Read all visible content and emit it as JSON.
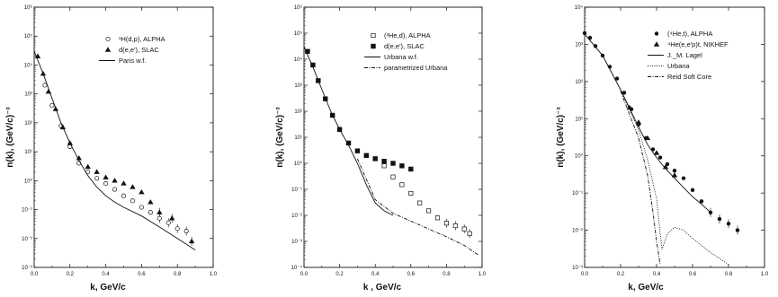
{
  "chart_data": [
    {
      "type": "scatter",
      "xlabel": "k,   GeV/c",
      "ylabel": "n(k),   (GeV/c)⁻³",
      "xlim": [
        0,
        1.0
      ],
      "ylim": [
        0.001,
        1000000.0
      ],
      "y_scale": "log",
      "x_ticks": [
        "0.0",
        "0.2",
        "0.4",
        "0.6",
        "0.8",
        "1.0"
      ],
      "y_ticks": [
        "10⁻³",
        "10⁻²",
        "10⁻¹",
        "10⁰",
        "10¹",
        "10²",
        "10³",
        "10⁴",
        "10⁵",
        "10⁶"
      ],
      "legend_position": "top-right",
      "series": [
        {
          "name": "¹H(d,p),  ALPHA",
          "marker": "open-circle",
          "x": [
            0.06,
            0.1,
            0.15,
            0.2,
            0.25,
            0.3,
            0.35,
            0.4,
            0.45,
            0.5,
            0.55,
            0.6,
            0.65,
            0.7,
            0.75,
            0.8,
            0.85
          ],
          "y": [
            2000,
            400,
            80,
            15,
            4,
            2,
            1.2,
            0.8,
            0.5,
            0.3,
            0.2,
            0.12,
            0.08,
            0.05,
            0.035,
            0.022,
            0.018
          ]
        },
        {
          "name": "d(e,e'),  SLAC",
          "marker": "filled-triangle",
          "x": [
            0.02,
            0.05,
            0.08,
            0.12,
            0.16,
            0.2,
            0.25,
            0.3,
            0.35,
            0.4,
            0.45,
            0.5,
            0.55,
            0.6,
            0.65,
            0.7,
            0.77,
            0.88
          ],
          "y": [
            20000,
            5000,
            1200,
            300,
            70,
            20,
            6,
            3,
            2,
            1.3,
            1,
            0.8,
            0.6,
            0.4,
            0.18,
            0.08,
            0.05,
            0.008
          ]
        },
        {
          "name": "Paris w.f.",
          "marker": "line-solid",
          "x": [
            0.0,
            0.05,
            0.1,
            0.15,
            0.2,
            0.25,
            0.3,
            0.35,
            0.4,
            0.45,
            0.5,
            0.6,
            0.7,
            0.8,
            0.9
          ],
          "y": [
            30000,
            5000,
            700,
            100,
            20,
            5,
            1.5,
            0.6,
            0.3,
            0.18,
            0.12,
            0.06,
            0.025,
            0.01,
            0.004
          ]
        }
      ]
    },
    {
      "type": "scatter",
      "xlabel": "k ,  GeV/c",
      "ylabel": "n(k),   (GeV/c)⁻³",
      "xlim": [
        0,
        1.0
      ],
      "ylim": [
        0.0001,
        1000000.0
      ],
      "y_scale": "log",
      "x_ticks": [
        "0.0",
        "0.2",
        "0.4",
        "0.6",
        "0.8",
        "1.0"
      ],
      "y_ticks": [
        "10⁻⁴",
        "10⁻³",
        "10⁻²",
        "10⁻¹",
        "10⁰",
        "10¹",
        "10²",
        "10³",
        "10⁴",
        "10⁵",
        "10⁶"
      ],
      "legend_position": "top-right",
      "series": [
        {
          "name": "(³He,d),  ALPHA",
          "marker": "open-square",
          "x": [
            0.45,
            0.5,
            0.55,
            0.6,
            0.65,
            0.7,
            0.75,
            0.8,
            0.85,
            0.9,
            0.93
          ],
          "y": [
            0.8,
            0.3,
            0.15,
            0.07,
            0.03,
            0.015,
            0.008,
            0.005,
            0.004,
            0.003,
            0.002
          ]
        },
        {
          "name": "d(e,e'),     SLAC",
          "marker": "filled-square",
          "x": [
            0.02,
            0.05,
            0.08,
            0.12,
            0.16,
            0.2,
            0.25,
            0.3,
            0.35,
            0.4,
            0.45,
            0.5,
            0.55,
            0.6
          ],
          "y": [
            20000,
            6000,
            1500,
            300,
            70,
            20,
            6,
            3,
            2,
            1.5,
            1.2,
            1.0,
            0.8,
            0.6
          ]
        },
        {
          "name": "Urbana w.f.",
          "marker": "line-solid",
          "x": [
            0.0,
            0.05,
            0.1,
            0.15,
            0.2,
            0.25,
            0.3,
            0.35,
            0.4,
            0.45,
            0.5
          ],
          "y": [
            30000,
            5000,
            700,
            100,
            20,
            5,
            1.0,
            0.15,
            0.03,
            0.015,
            0.01
          ]
        },
        {
          "name": "parametrized Urbana",
          "marker": "line-dashdot",
          "x": [
            0.3,
            0.4,
            0.5,
            0.6,
            0.7,
            0.8,
            0.9,
            0.98
          ],
          "y": [
            1.5,
            0.04,
            0.012,
            0.006,
            0.003,
            0.0015,
            0.0007,
            0.0003
          ]
        }
      ]
    },
    {
      "type": "scatter",
      "xlabel": "k,   GeV/c",
      "ylabel": "n(k),   (GeV/c)⁻³",
      "xlim": [
        0,
        1.0
      ],
      "ylim": [
        0.001,
        10000.0
      ],
      "y_scale": "log",
      "x_ticks": [
        "0.0",
        "0.2",
        "0.4",
        "0.6",
        "0.8",
        "1.0"
      ],
      "y_ticks": [
        "10⁻³",
        "10⁻²",
        "10⁻¹",
        "10⁰",
        "10¹",
        "10²",
        "10³",
        "10⁴"
      ],
      "legend_position": "top-right",
      "series": [
        {
          "name": "(⁴He,t),  ALPHA",
          "marker": "filled-circle",
          "x": [
            0.0,
            0.03,
            0.06,
            0.1,
            0.14,
            0.18,
            0.22,
            0.26,
            0.3,
            0.34,
            0.38,
            0.42,
            0.46,
            0.5,
            0.55,
            0.6,
            0.65,
            0.7,
            0.75,
            0.8,
            0.85
          ],
          "y": [
            2000,
            1500,
            900,
            500,
            250,
            120,
            50,
            18,
            7,
            3,
            1.5,
            0.9,
            0.6,
            0.4,
            0.25,
            0.12,
            0.06,
            0.03,
            0.02,
            0.015,
            0.01
          ]
        },
        {
          "name": "⁴He(e,e'p)t,  NIKHEF",
          "marker": "filled-triangle",
          "x": [
            0.25,
            0.3,
            0.35,
            0.4,
            0.45,
            0.5
          ],
          "y": [
            20,
            8,
            3,
            1.2,
            0.5,
            0.3
          ]
        },
        {
          "name": "J._M. Lagel",
          "marker": "line-solid",
          "x": [
            0.0,
            0.1,
            0.2,
            0.3,
            0.35,
            0.4,
            0.45,
            0.5,
            0.55,
            0.6,
            0.65,
            0.7
          ],
          "y": [
            1900,
            500,
            60,
            6,
            2,
            0.9,
            0.45,
            0.25,
            0.14,
            0.08,
            0.05,
            0.03
          ]
        },
        {
          "name": "Urbana",
          "marker": "line-dotted",
          "x": [
            0.2,
            0.3,
            0.35,
            0.4,
            0.43,
            0.46,
            0.5,
            0.55,
            0.6,
            0.7,
            0.8
          ],
          "y": [
            60,
            5,
            0.8,
            0.07,
            0.003,
            0.008,
            0.012,
            0.01,
            0.006,
            0.0025,
            0.0012
          ]
        },
        {
          "name": "Reid Soft Core",
          "marker": "line-dashdot",
          "x": [
            0.2,
            0.3,
            0.35,
            0.38,
            0.4,
            0.42
          ],
          "y": [
            55,
            3,
            0.3,
            0.03,
            0.005,
            0.0012
          ]
        }
      ]
    }
  ]
}
